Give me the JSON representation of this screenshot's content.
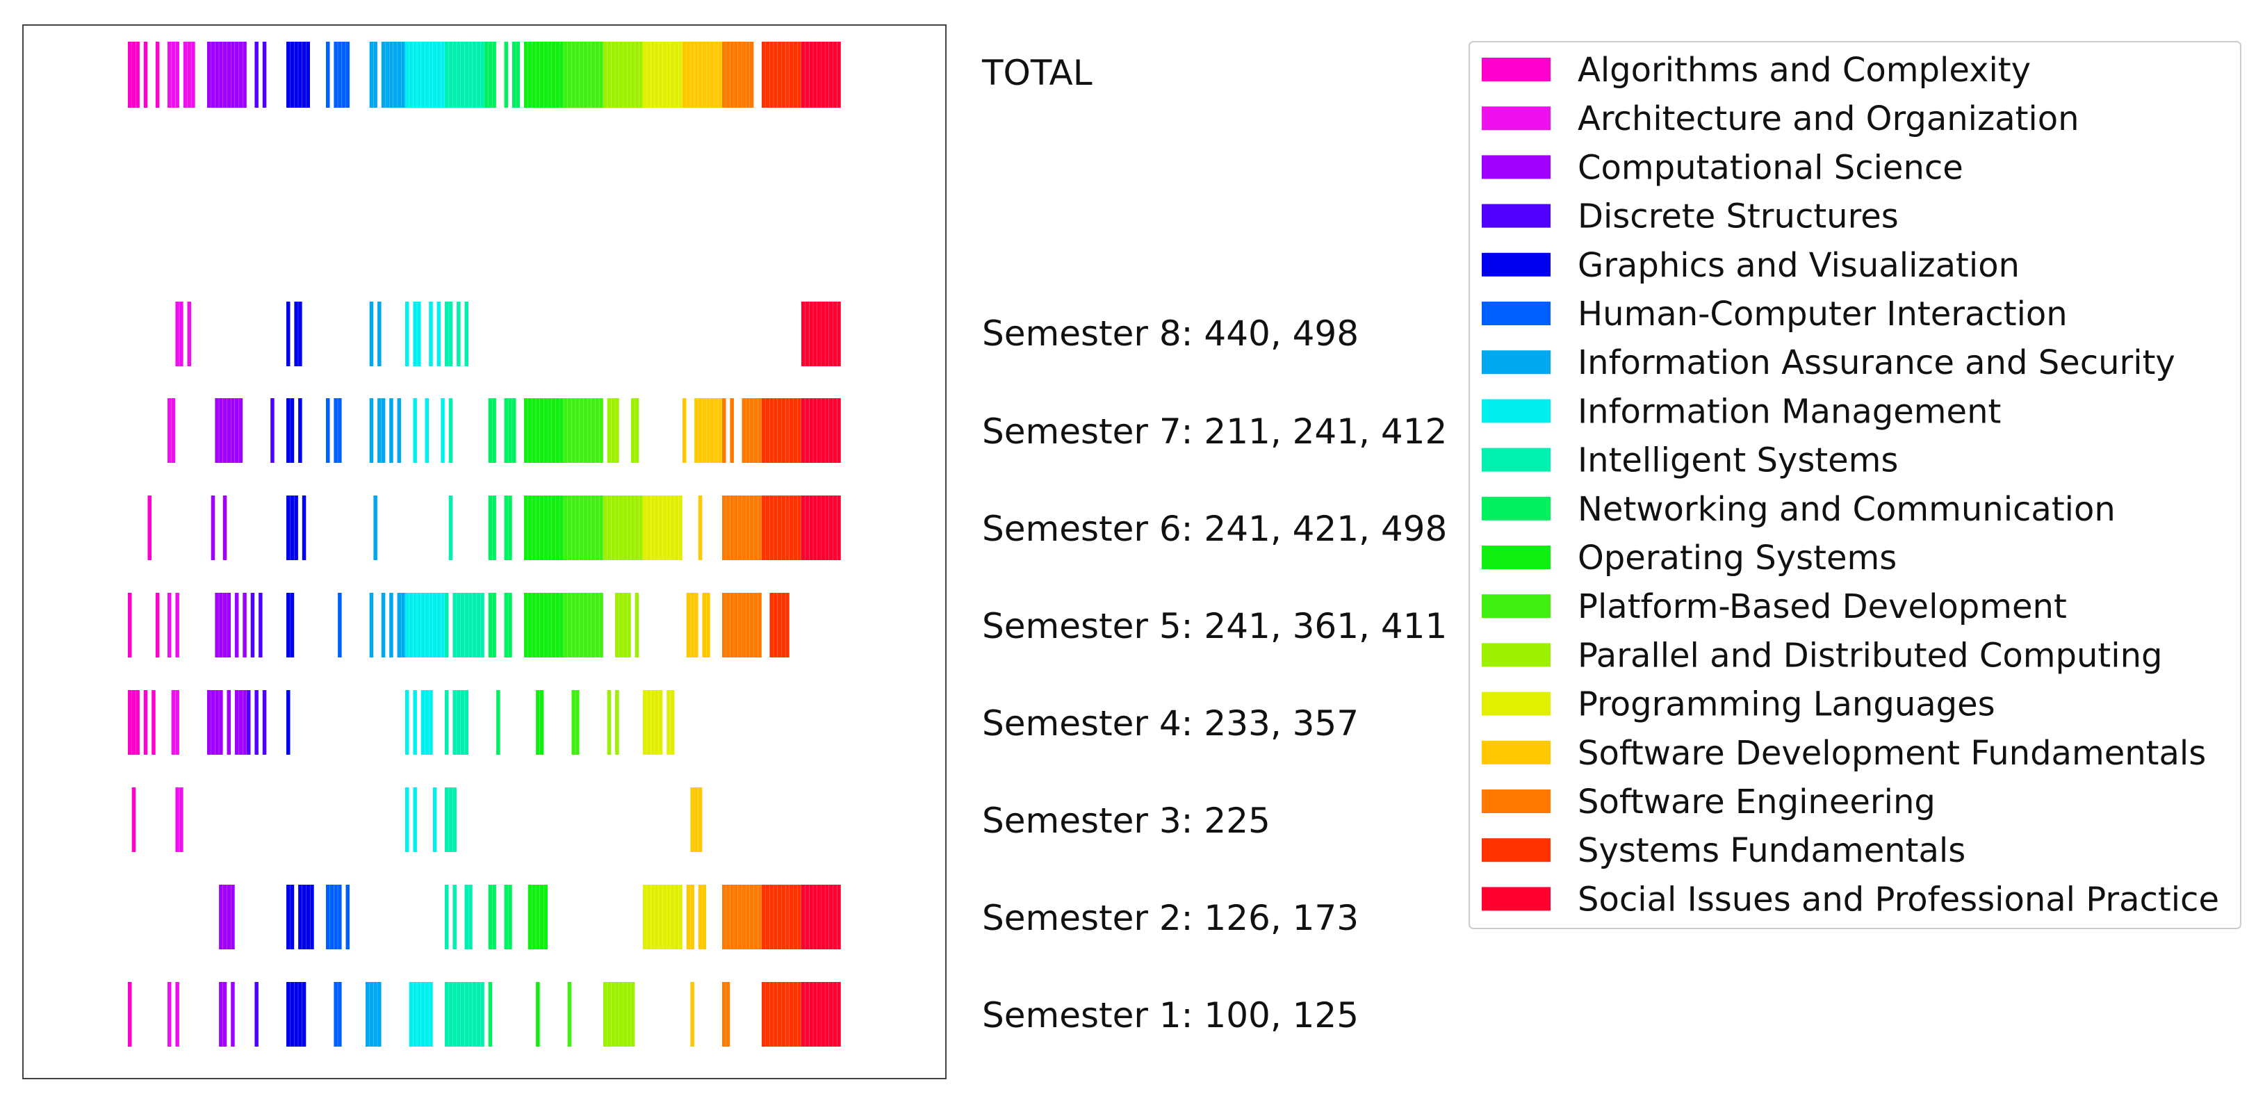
{
  "chart_data": {
    "type": "barcode",
    "title": "",
    "xlabel": "",
    "ylabel": "",
    "legend_position": "top-right",
    "rows": [
      {
        "id": "total",
        "label": "TOTAL"
      },
      {
        "id": "sem8",
        "label": "Semester 8: 440, 498"
      },
      {
        "id": "sem7",
        "label": "Semester 7: 211, 241, 412"
      },
      {
        "id": "sem6",
        "label": "Semester 6: 241, 421, 498"
      },
      {
        "id": "sem5",
        "label": "Semester 5: 241, 361, 411"
      },
      {
        "id": "sem4",
        "label": "Semester 4: 233, 357"
      },
      {
        "id": "sem3",
        "label": "Semester 3: 225"
      },
      {
        "id": "sem2",
        "label": "Semester 2: 126, 173"
      },
      {
        "id": "sem1",
        "label": "Semester 1: 100, 125"
      }
    ],
    "categories": [
      {
        "name": "Algorithms and Complexity",
        "color": "#ff00cc",
        "total": [
          0,
          1,
          2,
          4,
          7
        ],
        "sem8": [],
        "sem7": [],
        "sem6": [
          5
        ],
        "sem5": [
          0,
          7
        ],
        "sem4": [
          0,
          1,
          2,
          4,
          6
        ],
        "sem3": [
          1
        ],
        "sem2": [],
        "sem1": [
          0
        ]
      },
      {
        "name": "Architecture and Organization",
        "color": "#ee11ee",
        "total": [
          0,
          1,
          2,
          4,
          5,
          6
        ],
        "sem8": [
          2,
          3,
          5
        ],
        "sem7": [
          0,
          1
        ],
        "sem6": [],
        "sem5": [
          0,
          2
        ],
        "sem4": [
          1,
          2
        ],
        "sem3": [
          2,
          3
        ],
        "sem2": [],
        "sem1": [
          0,
          2
        ]
      },
      {
        "name": "Computational Science",
        "color": "#a000ff",
        "total": [
          0,
          1,
          2,
          3,
          4,
          5,
          6,
          7,
          8,
          9
        ],
        "sem8": [],
        "sem7": [
          2,
          3,
          4,
          5,
          6,
          7,
          8
        ],
        "sem6": [
          1,
          4
        ],
        "sem5": [
          2,
          3,
          4,
          5,
          7,
          9
        ],
        "sem4": [
          0,
          1,
          2,
          3,
          5,
          7,
          8,
          9
        ],
        "sem3": [],
        "sem2": [
          3,
          4,
          5,
          6
        ],
        "sem1": [
          3,
          4,
          6
        ]
      },
      {
        "name": "Discrete Structures",
        "color": "#5000ff",
        "total": [
          2,
          4
        ],
        "sem8": [],
        "sem7": [
          6
        ],
        "sem6": [],
        "sem5": [
          1,
          3
        ],
        "sem4": [
          0,
          2,
          4
        ],
        "sem3": [],
        "sem2": [],
        "sem1": [
          2
        ]
      },
      {
        "name": "Graphics and Visualization",
        "color": "#0000ee",
        "total": [
          0,
          1,
          2,
          3,
          4,
          5
        ],
        "sem8": [
          0,
          2,
          3
        ],
        "sem7": [
          0,
          1,
          3
        ],
        "sem6": [
          0,
          1,
          2,
          4
        ],
        "sem5": [
          0,
          1
        ],
        "sem4": [
          0
        ],
        "sem3": [],
        "sem2": [
          0,
          1,
          3,
          4,
          5,
          6
        ],
        "sem1": [
          0,
          1,
          2,
          3,
          4
        ]
      },
      {
        "name": "Human-Computer Interaction",
        "color": "#0060ff",
        "total": [
          0,
          2,
          3,
          4,
          5
        ],
        "sem8": [],
        "sem7": [
          0,
          2,
          3
        ],
        "sem6": [],
        "sem5": [
          3
        ],
        "sem4": [],
        "sem3": [],
        "sem2": [
          0,
          1,
          2,
          3,
          5
        ],
        "sem1": [
          2,
          3
        ]
      },
      {
        "name": "Information Assurance and Security",
        "color": "#00a8f0",
        "total": [
          1,
          2,
          4,
          5,
          6,
          7,
          8,
          9
        ],
        "sem8": [
          1,
          3
        ],
        "sem7": [
          1,
          3,
          4,
          6,
          8
        ],
        "sem6": [
          2
        ],
        "sem5": [
          1,
          4,
          6,
          8,
          9
        ],
        "sem4": [],
        "sem3": [],
        "sem2": [],
        "sem1": [
          0,
          1,
          2,
          3
        ]
      },
      {
        "name": "Information Management",
        "color": "#00f0f0",
        "total": [
          0,
          1,
          2,
          3,
          4,
          5,
          6,
          7,
          8,
          9
        ],
        "sem8": [
          0,
          2,
          3,
          6,
          8
        ],
        "sem7": [
          2,
          5,
          9
        ],
        "sem6": [],
        "sem5": [
          0,
          1,
          2,
          3,
          4,
          5,
          6,
          7,
          8,
          9
        ],
        "sem4": [
          0,
          2,
          4,
          5,
          6
        ],
        "sem3": [
          0,
          2,
          7
        ],
        "sem2": [],
        "sem1": [
          1,
          2,
          3,
          4,
          5,
          6
        ]
      },
      {
        "name": "Intelligent Systems",
        "color": "#00f0b0",
        "total": [
          0,
          1,
          2,
          3,
          4,
          5,
          6,
          7,
          8,
          9
        ],
        "sem8": [
          0,
          1,
          3,
          5
        ],
        "sem7": [
          1
        ],
        "sem6": [
          1
        ],
        "sem5": [
          0,
          2,
          3,
          4,
          5,
          6,
          7,
          8,
          9
        ],
        "sem4": [
          0,
          2,
          3,
          4,
          5
        ],
        "sem3": [
          0,
          1,
          2
        ],
        "sem2": [
          0,
          2,
          5,
          6
        ],
        "sem1": [
          0,
          1,
          2,
          3,
          4,
          5,
          6,
          7,
          8,
          9
        ]
      },
      {
        "name": "Networking and Communication",
        "color": "#00f060",
        "total": [
          0,
          1,
          2,
          5,
          7,
          8
        ],
        "sem8": [],
        "sem7": [
          1,
          2,
          5,
          6,
          7
        ],
        "sem6": [
          1,
          2,
          5,
          6
        ],
        "sem5": [
          1,
          2,
          5,
          6
        ],
        "sem4": [
          3
        ],
        "sem3": [],
        "sem2": [
          1,
          2,
          5,
          6
        ],
        "sem1": [
          1
        ]
      },
      {
        "name": "Operating Systems",
        "color": "#10f010",
        "total": [
          0,
          1,
          2,
          3,
          4,
          5,
          6,
          7,
          8,
          9
        ],
        "sem8": [],
        "sem7": [
          0,
          1,
          2,
          3,
          4,
          5,
          6,
          7,
          8,
          9
        ],
        "sem6": [
          0,
          1,
          2,
          3,
          4,
          5,
          6,
          7,
          8,
          9
        ],
        "sem5": [
          0,
          1,
          2,
          3,
          4,
          5,
          6,
          7,
          8,
          9
        ],
        "sem4": [
          3,
          4
        ],
        "sem3": [],
        "sem2": [
          1,
          2,
          3,
          4,
          5
        ],
        "sem1": [
          3
        ]
      },
      {
        "name": "Platform-Based Development",
        "color": "#40f010",
        "total": [
          0,
          1,
          2,
          3,
          4,
          5,
          6,
          7,
          8,
          9
        ],
        "sem8": [],
        "sem7": [
          0,
          1,
          2,
          3,
          4,
          5,
          6,
          7,
          8,
          9
        ],
        "sem6": [
          0,
          1,
          2,
          3,
          4,
          5,
          6,
          7,
          8,
          9
        ],
        "sem5": [
          0,
          1,
          2,
          3,
          4,
          5,
          6,
          7,
          8,
          9
        ],
        "sem4": [
          2,
          3
        ],
        "sem3": [],
        "sem2": [],
        "sem1": [
          1
        ]
      },
      {
        "name": "Parallel and Distributed Computing",
        "color": "#9cf000",
        "total": [
          0,
          1,
          2,
          3,
          4,
          5,
          6,
          7,
          8,
          9
        ],
        "sem8": [],
        "sem7": [
          1,
          2,
          3,
          7,
          8
        ],
        "sem6": [
          0,
          1,
          2,
          3,
          4,
          5,
          6,
          7,
          8,
          9
        ],
        "sem5": [
          3,
          4,
          5,
          6,
          8
        ],
        "sem4": [
          1,
          3
        ],
        "sem3": [],
        "sem2": [],
        "sem1": [
          0,
          1,
          2,
          3,
          4,
          5,
          6,
          7
        ]
      },
      {
        "name": "Programming Languages",
        "color": "#e0f000",
        "total": [
          0,
          1,
          2,
          3,
          4,
          5,
          6,
          7,
          8,
          9
        ],
        "sem8": [],
        "sem7": [],
        "sem6": [
          0,
          1,
          2,
          3,
          4,
          5,
          6,
          7,
          8,
          9
        ],
        "sem5": [],
        "sem4": [
          0,
          1,
          2,
          3,
          4,
          6,
          7
        ],
        "sem3": [],
        "sem2": [
          0,
          1,
          2,
          3,
          4,
          5,
          6,
          7,
          8,
          9
        ],
        "sem1": []
      },
      {
        "name": "Software Development Fundamentals",
        "color": "#ffc800",
        "total": [
          0,
          1,
          2,
          3,
          4,
          5,
          6,
          7,
          8,
          9
        ],
        "sem8": [],
        "sem7": [
          0,
          3,
          4,
          5,
          6,
          7,
          8,
          9
        ],
        "sem6": [
          4
        ],
        "sem5": [
          1,
          2,
          3,
          5,
          6
        ],
        "sem4": [],
        "sem3": [
          2,
          3,
          4
        ],
        "sem2": [
          1,
          2,
          4,
          5
        ],
        "sem1": [
          2
        ]
      },
      {
        "name": "Software Engineering",
        "color": "#ff7800",
        "total": [
          0,
          1,
          2,
          3,
          4,
          5,
          6,
          7
        ],
        "sem8": [],
        "sem7": [
          0,
          2,
          5,
          6,
          7,
          8,
          9
        ],
        "sem6": [
          0,
          1,
          2,
          3,
          4,
          5,
          6,
          7,
          8,
          9
        ],
        "sem5": [
          0,
          1,
          2,
          3,
          4,
          5,
          6,
          7,
          8,
          9
        ],
        "sem4": [],
        "sem3": [],
        "sem2": [
          0,
          1,
          2,
          3,
          4,
          5,
          6,
          7,
          8,
          9
        ],
        "sem1": [
          0,
          1
        ]
      },
      {
        "name": "Systems Fundamentals",
        "color": "#ff3200",
        "total": [
          0,
          1,
          2,
          3,
          4,
          5,
          6,
          7,
          8,
          9
        ],
        "sem8": [],
        "sem7": [
          0,
          1,
          2,
          3,
          4,
          5,
          6,
          7,
          8,
          9
        ],
        "sem6": [
          0,
          1,
          2,
          3,
          4,
          5,
          6,
          7,
          8,
          9
        ],
        "sem5": [
          2,
          3,
          4,
          5,
          6
        ],
        "sem4": [],
        "sem3": [],
        "sem2": [
          0,
          1,
          2,
          3,
          4,
          5,
          6,
          7,
          8,
          9
        ],
        "sem1": [
          0,
          1,
          2,
          3,
          4,
          5,
          6,
          7,
          8,
          9
        ]
      },
      {
        "name": "Social Issues and Professional Practice",
        "color": "#ff0030",
        "total": [
          0,
          1,
          2,
          3,
          4,
          5,
          6,
          7,
          8,
          9
        ],
        "sem8": [
          0,
          1,
          2,
          3,
          4,
          5,
          6,
          7,
          8,
          9
        ],
        "sem7": [
          0,
          1,
          2,
          3,
          4,
          5,
          6,
          7,
          8,
          9
        ],
        "sem6": [
          0,
          1,
          2,
          3,
          4,
          5,
          6,
          7,
          8,
          9
        ],
        "sem5": [],
        "sem4": [],
        "sem3": [],
        "sem2": [
          0,
          1,
          2,
          3,
          4,
          5,
          6,
          7,
          8,
          9
        ],
        "sem1": [
          0,
          1,
          2,
          3,
          4,
          5,
          6,
          7,
          8,
          9
        ]
      }
    ]
  }
}
